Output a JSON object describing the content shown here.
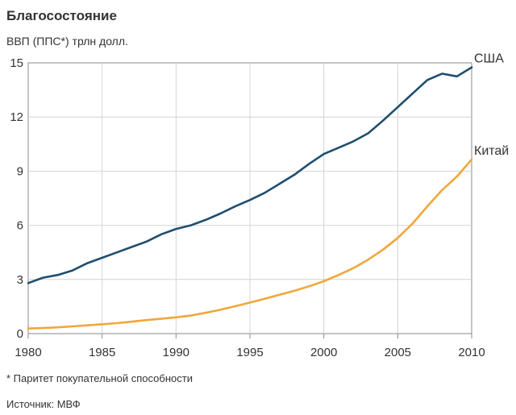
{
  "chart_data": {
    "type": "line",
    "title": "Благосостояние",
    "ylabel": "ВВП (ППС*) трлн долл.",
    "xlabel": "",
    "x": [
      1980,
      1981,
      1982,
      1983,
      1984,
      1985,
      1986,
      1987,
      1988,
      1989,
      1990,
      1991,
      1992,
      1993,
      1994,
      1995,
      1996,
      1997,
      1998,
      1999,
      2000,
      2001,
      2002,
      2003,
      2004,
      2005,
      2006,
      2007,
      2008,
      2009,
      2010
    ],
    "xlim": [
      1980,
      2010
    ],
    "ylim": [
      0,
      15
    ],
    "xticks": [
      1980,
      1985,
      1990,
      1995,
      2000,
      2005,
      2010
    ],
    "yticks": [
      0,
      3,
      6,
      9,
      12,
      15
    ],
    "grid": true,
    "series": [
      {
        "name": "США",
        "color": "#1f4e6e",
        "values": [
          2.8,
          3.1,
          3.25,
          3.5,
          3.9,
          4.2,
          4.5,
          4.8,
          5.1,
          5.5,
          5.8,
          6.0,
          6.3,
          6.65,
          7.05,
          7.4,
          7.8,
          8.3,
          8.8,
          9.4,
          9.95,
          10.3,
          10.65,
          11.1,
          11.8,
          12.55,
          13.3,
          14.05,
          14.4,
          14.25,
          14.75
        ]
      },
      {
        "name": "Китай",
        "color": "#f0a73a",
        "values": [
          0.28,
          0.31,
          0.35,
          0.4,
          0.46,
          0.52,
          0.58,
          0.66,
          0.75,
          0.82,
          0.9,
          1.0,
          1.15,
          1.32,
          1.52,
          1.72,
          1.93,
          2.15,
          2.37,
          2.62,
          2.9,
          3.25,
          3.63,
          4.1,
          4.65,
          5.3,
          6.1,
          7.05,
          7.95,
          8.7,
          9.65
        ]
      }
    ],
    "footnote": "* Паритет покупательной способности",
    "source": "Источник: МВФ"
  }
}
